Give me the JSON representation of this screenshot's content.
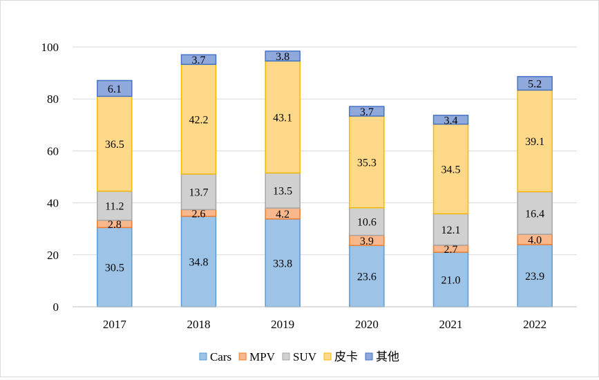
{
  "chart_data": {
    "type": "bar",
    "stacked": true,
    "categories": [
      "2017",
      "2018",
      "2019",
      "2020",
      "2021",
      "2022"
    ],
    "series": [
      {
        "name": "Cars",
        "values": [
          30.5,
          34.8,
          33.8,
          23.6,
          21.0,
          23.9
        ],
        "labels": [
          "30.5",
          "34.8",
          "33.8",
          "23.6",
          "21.0",
          "23.9"
        ],
        "color": "#9dc3e6",
        "stroke": "#5b9bd5"
      },
      {
        "name": "MPV",
        "values": [
          2.8,
          2.6,
          4.2,
          3.9,
          2.7,
          4.0
        ],
        "labels": [
          "2.8",
          "2.6",
          "4.2",
          "3.9",
          "2.7",
          "4.0"
        ],
        "color": "#f8b88b",
        "stroke": "#ed7d31"
      },
      {
        "name": "SUV",
        "values": [
          11.2,
          13.7,
          13.5,
          10.6,
          12.1,
          16.4
        ],
        "labels": [
          "11.2",
          "13.7",
          "13.5",
          "10.6",
          "12.1",
          "16.4"
        ],
        "color": "#d0d0d0",
        "stroke": "#a5a5a5"
      },
      {
        "name": "皮卡",
        "values": [
          36.5,
          42.2,
          43.1,
          35.3,
          34.5,
          39.1
        ],
        "labels": [
          "36.5",
          "42.2",
          "43.1",
          "35.3",
          "34.5",
          "39.1"
        ],
        "color": "#ffd98a",
        "stroke": "#f5b800"
      },
      {
        "name": "其他",
        "values": [
          6.1,
          3.7,
          3.8,
          3.7,
          3.4,
          5.2
        ],
        "labels": [
          "6.1",
          "3.7",
          "3.8",
          "3.7",
          "3.4",
          "5.2"
        ],
        "color": "#8fa9dc",
        "stroke": "#4472c4"
      }
    ],
    "yticks": [
      "0",
      "20",
      "40",
      "60",
      "80",
      "100"
    ],
    "ylim": [
      0,
      100
    ],
    "grid": true,
    "legend": "bottom",
    "title": "",
    "xlabel": "",
    "ylabel": ""
  }
}
